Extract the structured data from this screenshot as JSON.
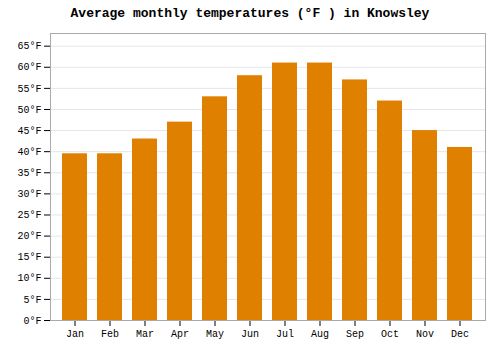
{
  "chart_data": {
    "type": "bar",
    "title": "Average monthly temperatures (°F ) in Knowsley",
    "categories": [
      "Jan",
      "Feb",
      "Mar",
      "Apr",
      "May",
      "Jun",
      "Jul",
      "Aug",
      "Sep",
      "Oct",
      "Nov",
      "Dec"
    ],
    "values": [
      39.5,
      39.5,
      43.0,
      47.0,
      53.0,
      58.0,
      61.0,
      61.0,
      57.0,
      52.0,
      45.0,
      41.0
    ],
    "color": "#E08000",
    "ylim": [
      0,
      68
    ],
    "yticks": [
      {
        "value": 0,
        "label": "0°F"
      },
      {
        "value": 5,
        "label": "5°F"
      },
      {
        "value": 10,
        "label": "10°F"
      },
      {
        "value": 15,
        "label": "15°F"
      },
      {
        "value": 20,
        "label": "20°F"
      },
      {
        "value": 25,
        "label": "25°F"
      },
      {
        "value": 30,
        "label": "30°F"
      },
      {
        "value": 35,
        "label": "35°F"
      },
      {
        "value": 40,
        "label": "40°F"
      },
      {
        "value": 45,
        "label": "45°F"
      },
      {
        "value": 50,
        "label": "50°F"
      },
      {
        "value": 55,
        "label": "55°F"
      },
      {
        "value": 60,
        "label": "60°F"
      },
      {
        "value": 65,
        "label": "65°F"
      }
    ],
    "grid": true
  }
}
